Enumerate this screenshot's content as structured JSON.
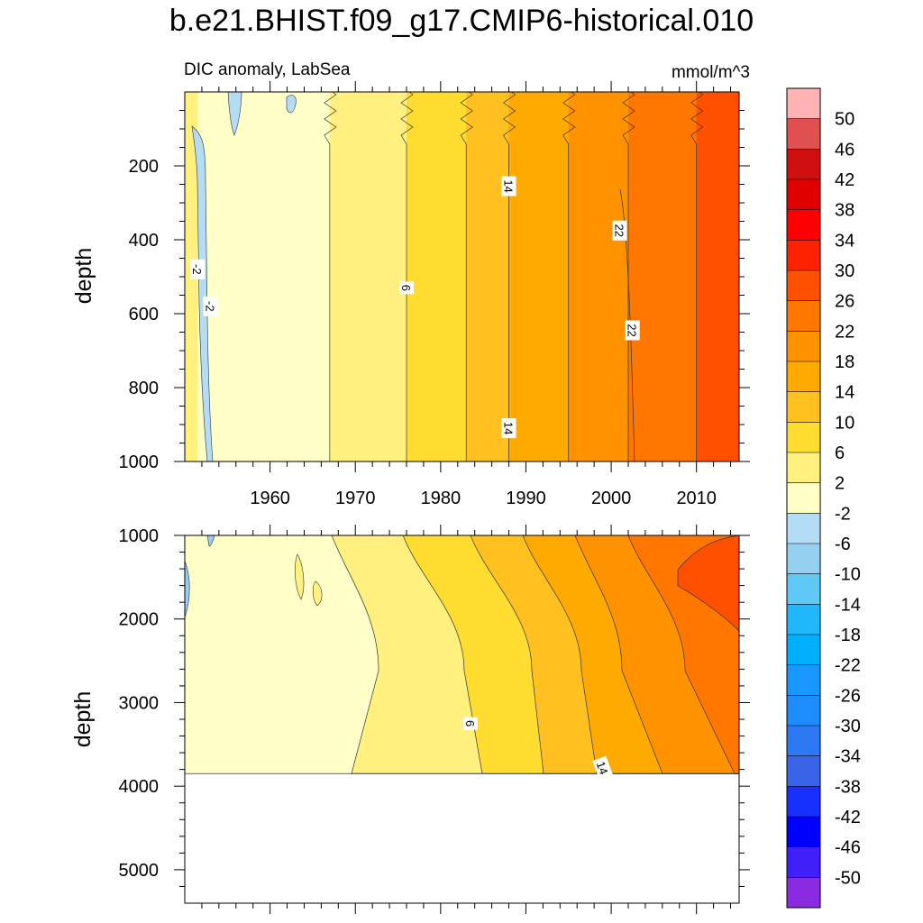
{
  "chart_data": {
    "type": "contour",
    "title": "b.e21.BHIST.f09_g17.CMIP6-historical.010",
    "variable": "DIC anomaly, LabSea",
    "units": "mmol/m^3",
    "time_range": [
      1950,
      2015
    ],
    "time_ticks": [
      1960,
      1970,
      1980,
      1990,
      2000,
      2010
    ],
    "colorbar": {
      "labels": [
        "50",
        "46",
        "42",
        "38",
        "34",
        "30",
        "26",
        "22",
        "18",
        "14",
        "10",
        "6",
        "2",
        "-2",
        "-6",
        "-10",
        "-14",
        "-18",
        "-22",
        "-26",
        "-30",
        "-34",
        "-38",
        "-42",
        "-46",
        "-50"
      ],
      "colors": [
        "#ffb3b3",
        "#e05050",
        "#d01010",
        "#e00000",
        "#ff0000",
        "#ff2200",
        "#ff5000",
        "#ff7700",
        "#ff9200",
        "#ffaa00",
        "#ffc020",
        "#ffdd30",
        "#fff080",
        "#ffffc8",
        "#b4dcf4",
        "#96d0f0",
        "#60c8f4",
        "#20b8fa",
        "#00b0ff",
        "#1898ff",
        "#1e8cff",
        "#2e78f4",
        "#3a64e8",
        "#1830ff",
        "#0000ff",
        "#4020f8",
        "#8a2be2"
      ]
    },
    "panels": [
      {
        "name": "upper",
        "ylabel": "depth",
        "depth_range": [
          0,
          1000
        ],
        "yticks": [
          200,
          400,
          600,
          800,
          1000
        ],
        "bands": [
          {
            "level": "2",
            "from_year": 1950,
            "color": "#fff080"
          },
          {
            "level": "-2",
            "from_year": 1951.5,
            "color": "#ffffc8"
          },
          {
            "level": "2",
            "from_year": 1967,
            "color": "#fff080"
          },
          {
            "level": "6",
            "from_year": 1976,
            "color": "#ffdd30"
          },
          {
            "level": "10",
            "from_year": 1983,
            "color": "#ffc020"
          },
          {
            "level": "14",
            "from_year": 1988,
            "color": "#ffaa00"
          },
          {
            "level": "18",
            "from_year": 1995,
            "color": "#ff9200"
          },
          {
            "level": "22",
            "from_year": 2002,
            "color": "#ff7700"
          },
          {
            "level": "26",
            "from_year": 2010,
            "color": "#ff5000"
          }
        ],
        "contour_labels": [
          {
            "text": "-2",
            "year": 1951.5,
            "depth": 480
          },
          {
            "text": "-2",
            "year": 1953,
            "depth": 580
          },
          {
            "text": "6",
            "year": 1976,
            "depth": 530
          },
          {
            "text": "14",
            "year": 1988,
            "depth": 255
          },
          {
            "text": "14",
            "year": 1988,
            "depth": 910
          },
          {
            "text": "22",
            "year": 2001,
            "depth": 375
          },
          {
            "text": "22",
            "year": 2002.5,
            "depth": 645
          }
        ]
      },
      {
        "name": "lower",
        "ylabel": "depth",
        "depth_range": [
          1000,
          5400
        ],
        "yticks": [
          1000,
          2000,
          3000,
          4000,
          5000
        ],
        "seafloor_depth": 3850,
        "contour_labels": [
          {
            "text": "6",
            "year": 1983.5,
            "depth": 3250
          },
          {
            "text": "14",
            "year": 1999,
            "depth": 3780
          }
        ]
      }
    ]
  }
}
